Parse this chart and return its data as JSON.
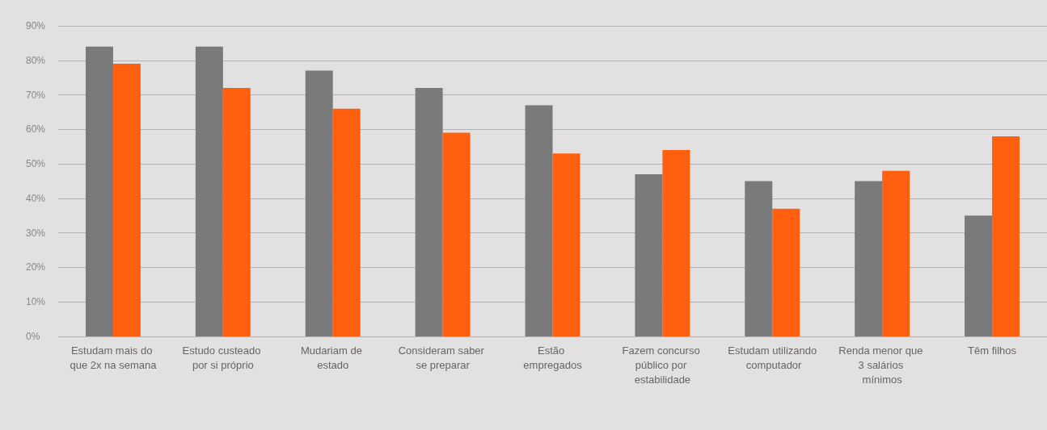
{
  "chart_data": {
    "type": "bar",
    "categories": [
      "Estudam mais do que 2x na semana",
      "Estudo custeado por si próprio",
      "Mudariam de estado",
      "Consideram saber se preparar",
      "Estão empregados",
      "Fazem concurso público por estabilidade",
      "Estudam utilizando computador",
      "Renda menor que 3 salários mínimos",
      "Têm filhos"
    ],
    "series": [
      {
        "color": "#7a7a7a",
        "values": [
          84,
          84,
          77,
          72,
          67,
          47,
          45,
          45,
          35
        ]
      },
      {
        "color": "#ff6010",
        "values": [
          79,
          72,
          66,
          59,
          53,
          54,
          37,
          48,
          58
        ]
      }
    ],
    "ylim": [
      0,
      90
    ],
    "yticks": [
      {
        "value": 0,
        "label": "0%"
      },
      {
        "value": 10,
        "label": "10%"
      },
      {
        "value": 20,
        "label": "20%"
      },
      {
        "value": 30,
        "label": "30%"
      },
      {
        "value": 40,
        "label": "40%"
      },
      {
        "value": 50,
        "label": "50%"
      },
      {
        "value": 60,
        "label": "60%"
      },
      {
        "value": 70,
        "label": "70%"
      },
      {
        "value": 80,
        "label": "80%"
      },
      {
        "value": 90,
        "label": "90%"
      }
    ],
    "grid": "y"
  }
}
